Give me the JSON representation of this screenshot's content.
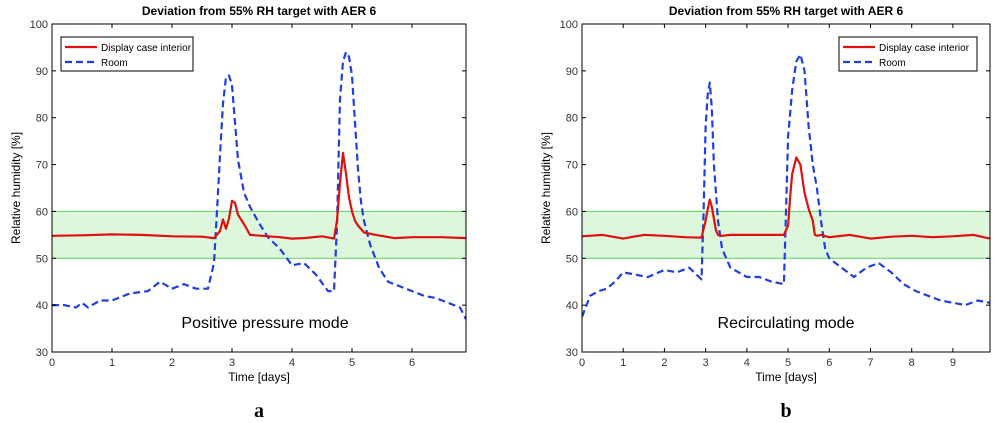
{
  "chart_data": [
    {
      "id": "a",
      "type": "line",
      "title": "Deviation from 55% RH target with AER 6",
      "xlabel": "Time [days]",
      "ylabel": "Relative humidity [%]",
      "xlim": [
        0,
        6.9
      ],
      "ylim": [
        30,
        100
      ],
      "xticks": [
        0,
        1,
        2,
        3,
        4,
        5,
        6
      ],
      "yticks": [
        30,
        40,
        50,
        60,
        70,
        80,
        90,
        100
      ],
      "band": {
        "from": 50,
        "to": 60,
        "fill": "#ddf7dd",
        "edge": "#5fd35f"
      },
      "annotation": "Positive pressure mode",
      "panel_label": "a",
      "legend_position": "top-left",
      "series": [
        {
          "name": "Display case interior",
          "color": "#e01010",
          "dash": "solid",
          "x": [
            0,
            0.5,
            1.0,
            1.5,
            2.0,
            2.5,
            2.7,
            2.8,
            2.85,
            2.9,
            2.95,
            3.0,
            3.05,
            3.1,
            3.2,
            3.3,
            3.5,
            3.8,
            4.0,
            4.2,
            4.5,
            4.7,
            4.75,
            4.8,
            4.85,
            4.9,
            4.95,
            5.0,
            5.05,
            5.1,
            5.2,
            5.4,
            5.7,
            6.0,
            6.5,
            6.9
          ],
          "y": [
            54.8,
            54.9,
            55.1,
            55.0,
            54.7,
            54.6,
            54.3,
            55.8,
            58.3,
            56.3,
            58.5,
            62.3,
            61.8,
            59.3,
            57.3,
            55.0,
            54.8,
            54.5,
            54.2,
            54.3,
            54.7,
            54.2,
            58.0,
            66.0,
            72.5,
            68.0,
            63.0,
            60.0,
            58.0,
            57.0,
            55.5,
            55.0,
            54.3,
            54.5,
            54.5,
            54.3
          ]
        },
        {
          "name": "Room",
          "color": "#1f3fe0",
          "dash": "dashed",
          "x": [
            0,
            0.2,
            0.4,
            0.5,
            0.6,
            0.8,
            1.0,
            1.3,
            1.6,
            1.8,
            2.0,
            2.2,
            2.4,
            2.6,
            2.7,
            2.75,
            2.8,
            2.85,
            2.9,
            2.95,
            3.0,
            3.05,
            3.1,
            3.2,
            3.3,
            3.45,
            3.6,
            3.8,
            4.0,
            4.2,
            4.4,
            4.6,
            4.7,
            4.75,
            4.8,
            4.85,
            4.9,
            4.95,
            5.0,
            5.05,
            5.1,
            5.15,
            5.2,
            5.3,
            5.45,
            5.6,
            5.8,
            6.0,
            6.2,
            6.4,
            6.6,
            6.8,
            6.9
          ],
          "y": [
            40.0,
            40.0,
            39.5,
            40.5,
            39.5,
            41.0,
            41.0,
            42.5,
            43.0,
            45.0,
            43.5,
            44.5,
            43.5,
            43.5,
            49.0,
            60.0,
            72.0,
            83.0,
            88.7,
            89.0,
            87.0,
            79.0,
            71.0,
            64.0,
            61.0,
            57.5,
            54.5,
            52.0,
            48.5,
            49.0,
            46.5,
            43.0,
            43.0,
            57.0,
            84.0,
            92.0,
            94.0,
            93.0,
            89.0,
            79.0,
            69.0,
            62.0,
            58.0,
            53.0,
            48.0,
            45.0,
            44.0,
            43.0,
            42.0,
            41.5,
            40.5,
            39.5,
            37.0
          ]
        }
      ]
    },
    {
      "id": "b",
      "type": "line",
      "title": "Deviation from 55% RH target with AER 6",
      "xlabel": "Time [days]",
      "ylabel": "Relative humidity [%]",
      "xlim": [
        0,
        9.9
      ],
      "ylim": [
        30,
        100
      ],
      "xticks": [
        0,
        1,
        2,
        3,
        4,
        5,
        6,
        7,
        8,
        9
      ],
      "yticks": [
        30,
        40,
        50,
        60,
        70,
        80,
        90,
        100
      ],
      "band": {
        "from": 50,
        "to": 60,
        "fill": "#ddf7dd",
        "edge": "#5fd35f"
      },
      "annotation": "Recirculating mode",
      "panel_label": "b",
      "legend_position": "top-right",
      "series": [
        {
          "name": "Display case interior",
          "color": "#e01010",
          "dash": "solid",
          "x": [
            0,
            0.5,
            1.0,
            1.5,
            2.0,
            2.5,
            2.9,
            3.0,
            3.05,
            3.1,
            3.15,
            3.2,
            3.25,
            3.3,
            3.4,
            3.6,
            4.0,
            4.5,
            4.9,
            5.0,
            5.05,
            5.1,
            5.2,
            5.3,
            5.4,
            5.5,
            5.6,
            5.65,
            5.7,
            5.8,
            6.0,
            6.5,
            7.0,
            7.5,
            8.0,
            8.5,
            9.0,
            9.5,
            9.9
          ],
          "y": [
            54.7,
            55.0,
            54.2,
            55.0,
            54.8,
            54.5,
            54.4,
            58.0,
            60.5,
            62.5,
            61.0,
            58.5,
            56.0,
            55.0,
            54.8,
            55.0,
            55.0,
            55.0,
            55.0,
            57.0,
            63.0,
            68.0,
            71.5,
            70.0,
            64.0,
            60.5,
            58.0,
            55.0,
            54.8,
            55.0,
            54.5,
            55.0,
            54.2,
            54.6,
            54.8,
            54.5,
            54.7,
            55.0,
            54.2
          ]
        },
        {
          "name": "Room",
          "color": "#1f3fe0",
          "dash": "dashed",
          "x": [
            0,
            0.2,
            0.4,
            0.6,
            0.8,
            1.0,
            1.3,
            1.6,
            2.0,
            2.3,
            2.6,
            2.9,
            2.95,
            3.0,
            3.05,
            3.1,
            3.15,
            3.2,
            3.3,
            3.4,
            3.6,
            3.8,
            4.0,
            4.3,
            4.6,
            4.9,
            4.95,
            5.0,
            5.1,
            5.2,
            5.3,
            5.4,
            5.5,
            5.6,
            5.7,
            5.8,
            5.9,
            6.0,
            6.3,
            6.6,
            6.9,
            7.2,
            7.5,
            7.8,
            8.1,
            8.4,
            8.7,
            9.0,
            9.3,
            9.6,
            9.9
          ],
          "y": [
            37.5,
            42.0,
            43.0,
            43.5,
            45.0,
            47.0,
            46.5,
            46.0,
            47.5,
            47.0,
            48.0,
            45.5,
            60.0,
            78.0,
            85.0,
            87.5,
            82.0,
            70.0,
            58.0,
            52.0,
            48.0,
            47.0,
            46.0,
            46.0,
            45.0,
            44.5,
            60.0,
            76.0,
            86.0,
            92.0,
            93.5,
            90.0,
            78.0,
            70.0,
            65.0,
            58.0,
            52.0,
            50.0,
            48.0,
            46.0,
            48.0,
            49.0,
            47.0,
            44.5,
            43.0,
            42.0,
            41.0,
            40.5,
            40.0,
            41.0,
            40.5
          ]
        }
      ]
    }
  ]
}
